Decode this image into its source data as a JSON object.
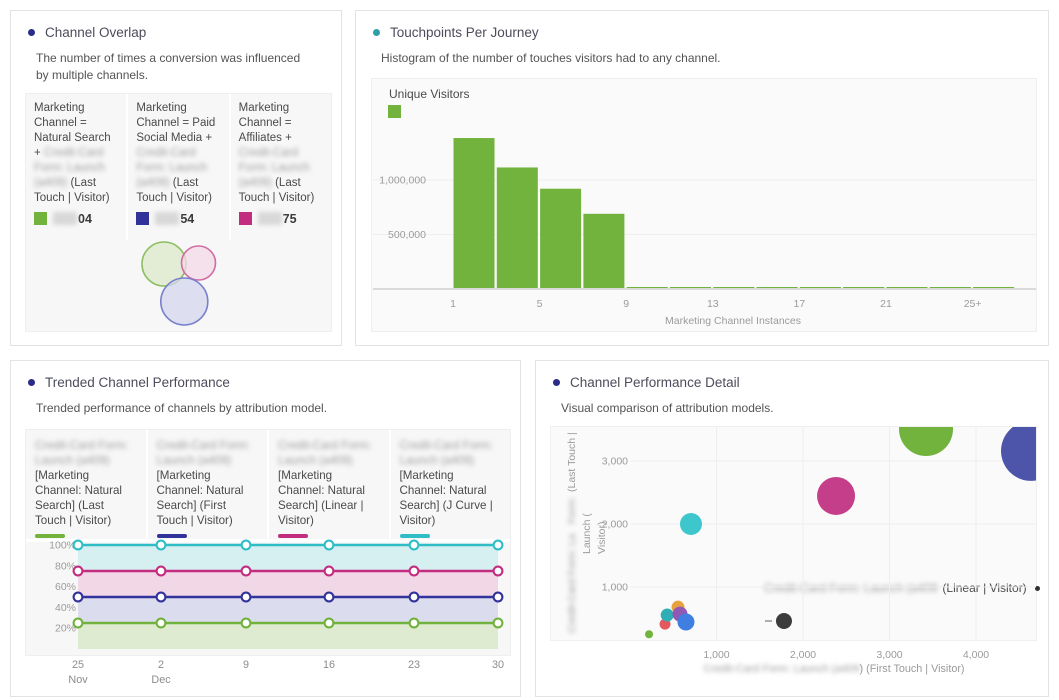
{
  "colors": {
    "green": "#71B33C",
    "navy": "#32329B",
    "magenta": "#C22D80",
    "teal": "#2FBEC6",
    "bullet_indigo": "#2B2B88",
    "bullet_teal": "#2E9FA8",
    "axis_text": "#9B9B9B",
    "bar_green": "#71B33C"
  },
  "panels": {
    "channel_overlap": {
      "title": "Channel Overlap",
      "description": "The number of times a conversion was influenced by multiple channels.",
      "items": [
        {
          "prefix": "Marketing Channel = Natural Search + ",
          "blurred": "Credit-Card Form: Launch (a409)",
          "suffix": " (Last Touch | Visitor)",
          "value_visible": "04",
          "color": "#71B33C"
        },
        {
          "prefix": "Marketing Channel = Paid Social Media + ",
          "blurred": "Credit-Card Form: Launch (a409)",
          "suffix": " (Last Touch | Visitor)",
          "value_visible": "54",
          "color": "#32329B"
        },
        {
          "prefix": "Marketing Channel = Affiliates + ",
          "blurred": "Credit-Card Form: Launch (a409)",
          "suffix": " (Last Touch | Visitor)",
          "value_visible": "75",
          "color": "#C22D80"
        }
      ]
    },
    "touchpoints": {
      "title": "Touchpoints Per Journey",
      "description": "Histogram of the number of touches visitors had to any channel.",
      "legend_label": "Unique Visitors",
      "xlabel": "Marketing Channel Instances"
    },
    "trended": {
      "title": "Trended Channel Performance",
      "description": "Trended performance of channels by attribution model.",
      "items": [
        {
          "blurred": "Credit-Card Form: Launch (a409)",
          "label": "[Marketing Channel: Natural Search] (Last Touch | Visitor)",
          "color": "#71B33C"
        },
        {
          "blurred": "Credit-Card Form: Launch (a409)",
          "label": "[Marketing Channel: Natural Search] (First Touch | Visitor)",
          "color": "#32329B"
        },
        {
          "blurred": "Credit-Card Form: Launch (a409)",
          "label": "[Marketing Channel: Natural Search] (Linear | Visitor)",
          "color": "#C22D80"
        },
        {
          "blurred": "Credit-Card Form: Launch (a409)",
          "label": "[Marketing Channel: Natural Search] (J Curve | Visitor)",
          "color": "#2FBEC6"
        }
      ]
    },
    "detail": {
      "title": "Channel Performance Detail",
      "description": "Visual comparison of attribution models.",
      "annotation_blurred": "Credit-Card Form: Launch (a409",
      "annotation": "(Linear | Visitor)",
      "xlabel_blurred": "Credit-Card Form: Launch (a409",
      "xlabel_visible": ") (First Touch | Visitor)",
      "ylabel_parts": {
        "last_touch": "(Last Touch |",
        "blur_short": "Form:",
        "blur_long": "Credit-Card Form: La",
        "launch": "Launch (",
        "visitor": "Visitor)"
      }
    }
  },
  "chart_data": [
    {
      "id": "channel-overlap-venn",
      "type": "venn",
      "title": "Channel Overlap",
      "circles": [
        {
          "set": "Natural Search",
          "cx": 153,
          "cy": 253,
          "r": 22,
          "fill": "#DCEACA",
          "stroke": "#8FBF64"
        },
        {
          "set": "Affiliates",
          "cx": 187.5,
          "cy": 252,
          "r": 17,
          "fill": "#F4D9E7",
          "stroke": "#CF6CA3"
        },
        {
          "set": "Paid Social Media",
          "cx": 173.3,
          "cy": 290.5,
          "r": 23.5,
          "fill": "#D4D6EC",
          "stroke": "#7680CB"
        }
      ]
    },
    {
      "id": "touchpoints-histogram",
      "type": "bar",
      "legend": "Unique Visitors",
      "xlabel": "Marketing Channel Instances",
      "bar_color": "#71B33C",
      "ylim": [
        0,
        1450000
      ],
      "grid": true,
      "y_ticks": [
        {
          "value": 1000000,
          "label": "1,000,000"
        },
        {
          "value": 500000,
          "label": "500,000"
        }
      ],
      "x_ticks": [
        {
          "value": 1,
          "label": "1"
        },
        {
          "value": 5,
          "label": "5"
        },
        {
          "value": 9,
          "label": "9"
        },
        {
          "value": 13,
          "label": "13"
        },
        {
          "value": 17,
          "label": "17"
        },
        {
          "value": 21,
          "label": "21"
        },
        {
          "value": 25,
          "label": "25+"
        }
      ],
      "bin_width": 2,
      "bins": [
        {
          "x": 1,
          "value": 1385000
        },
        {
          "x": 3,
          "value": 1115000
        },
        {
          "x": 5,
          "value": 920000
        },
        {
          "x": 7,
          "value": 690000
        },
        {
          "x": 9,
          "value": 15000
        },
        {
          "x": 11,
          "value": 15000
        },
        {
          "x": 13,
          "value": 15000
        },
        {
          "x": 15,
          "value": 15000
        },
        {
          "x": 17,
          "value": 15000
        },
        {
          "x": 19,
          "value": 15000
        },
        {
          "x": 21,
          "value": 15000
        },
        {
          "x": 23,
          "value": 15000
        },
        {
          "x": 25,
          "value": 15000
        }
      ]
    },
    {
      "id": "trended-performance",
      "type": "line",
      "ylim": [
        0,
        107
      ],
      "y_ticks": [
        {
          "value": 100,
          "label": "100%"
        },
        {
          "value": 80,
          "label": "80%"
        },
        {
          "value": 60,
          "label": "60%"
        },
        {
          "value": 40,
          "label": "40%"
        },
        {
          "value": 20,
          "label": "20%"
        }
      ],
      "x_labels": [
        {
          "day": "25",
          "month": "Nov"
        },
        {
          "day": "2",
          "month": "Dec"
        },
        {
          "day": "9",
          "month": ""
        },
        {
          "day": "16",
          "month": ""
        },
        {
          "day": "23",
          "month": ""
        },
        {
          "day": "30",
          "month": ""
        }
      ],
      "series": [
        {
          "name": "(J Curve | Visitor)",
          "color": "#2FBEC6",
          "band": "#D6EFF1",
          "values": [
            100,
            100,
            100,
            100,
            100,
            100
          ]
        },
        {
          "name": "(Linear | Visitor)",
          "color": "#C22D80",
          "band": "#F2D8E6",
          "values": [
            75,
            75,
            75,
            75,
            75,
            75
          ]
        },
        {
          "name": "(First Touch | Visitor)",
          "color": "#32329B",
          "band": "#DBDCEE",
          "values": [
            50,
            50,
            50,
            50,
            50,
            50
          ]
        },
        {
          "name": "(Last Touch | Visitor)",
          "color": "#71B33C",
          "band": "#DFEBD0",
          "values": [
            25,
            25,
            25,
            25,
            25,
            25
          ]
        }
      ]
    },
    {
      "id": "channel-performance-bubbles",
      "type": "scatter",
      "xlabel": "(First Touch | Visitor)",
      "ylabel": "(Last Touch | Visitor)",
      "x_ticks": [
        {
          "value": 1000,
          "label": "1,000"
        },
        {
          "value": 2000,
          "label": "2,000"
        },
        {
          "value": 3000,
          "label": "3,000"
        },
        {
          "value": 4000,
          "label": "4,000"
        }
      ],
      "y_ticks": [
        {
          "value": 3000,
          "label": "3,000"
        },
        {
          "value": 2000,
          "label": "2,000"
        },
        {
          "value": 1000,
          "label": "1,000"
        }
      ],
      "points": [
        {
          "x": 220,
          "y": 250,
          "r": 4,
          "color": "#71B33C"
        },
        {
          "x": 405,
          "y": 410,
          "r": 5.5,
          "color": "#E25A5E"
        },
        {
          "x": 430,
          "y": 555,
          "r": 6.5,
          "color": "#2FAEB5"
        },
        {
          "x": 555,
          "y": 680,
          "r": 6.5,
          "color": "#E8A23D"
        },
        {
          "x": 578,
          "y": 570,
          "r": 7.5,
          "color": "#9158B5"
        },
        {
          "x": 647,
          "y": 445,
          "r": 8.5,
          "color": "#3E7FE1"
        },
        {
          "x": 705,
          "y": 2000,
          "r": 11,
          "color": "#3EC6CD"
        },
        {
          "x": 1780,
          "y": 460,
          "r": 8,
          "color": "#3C3C3C",
          "dash": true
        },
        {
          "x": 2382,
          "y": 2445,
          "r": 19,
          "color": "#C43E8A"
        },
        {
          "x": 3422,
          "y": 3508,
          "r": 27,
          "color": "#71B33C"
        },
        {
          "x": 4636,
          "y": 3160,
          "r": 30,
          "color": "#4C55A9"
        }
      ]
    }
  ]
}
